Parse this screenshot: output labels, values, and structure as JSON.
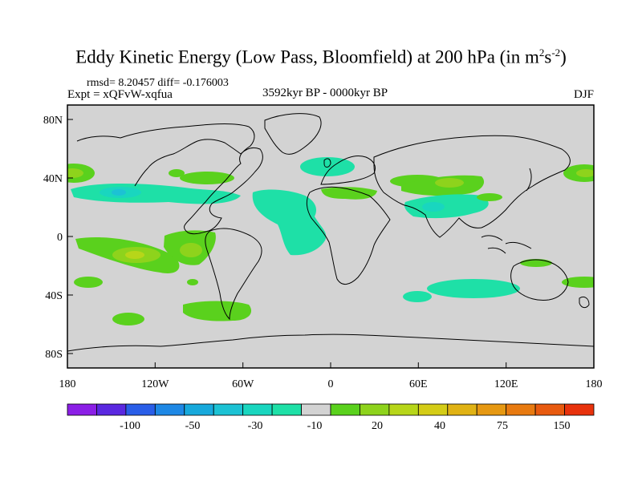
{
  "title": {
    "main": "Eddy Kinetic Energy (Low Pass, Bloomfield) at 200 hPa (in m",
    "sup1": "2",
    "mid": "s",
    "sup2": "-2",
    "end": ")"
  },
  "stats": "rmsd= 8.20457 diff= -0.176003",
  "experiment": "Expt = xQFvW-xqfua",
  "period": "3592kyr BP - 0000kyr BP",
  "season": "DJF",
  "map": {
    "lon_ticks": [
      "180",
      "120W",
      "60W",
      "0",
      "60E",
      "120E",
      "180"
    ],
    "lat_ticks": [
      "80N",
      "40N",
      "0",
      "40S",
      "80S"
    ],
    "land_color": "#d3d3d3"
  },
  "colorbar": {
    "labels": [
      "-100",
      "-50",
      "-30",
      "-10",
      "20",
      "40",
      "75",
      "150"
    ],
    "colors": [
      "#8b1fe6",
      "#5a28e0",
      "#2a5ee8",
      "#1e88e5",
      "#17a9dc",
      "#1cc2d4",
      "#19d6bf",
      "#1ee0a7",
      "#d3d3d3",
      "#5ad11d",
      "#8ed31c",
      "#b7d619",
      "#d4cc16",
      "#e0b214",
      "#e69812",
      "#e87a10",
      "#e85a0f",
      "#e8320c"
    ]
  }
}
